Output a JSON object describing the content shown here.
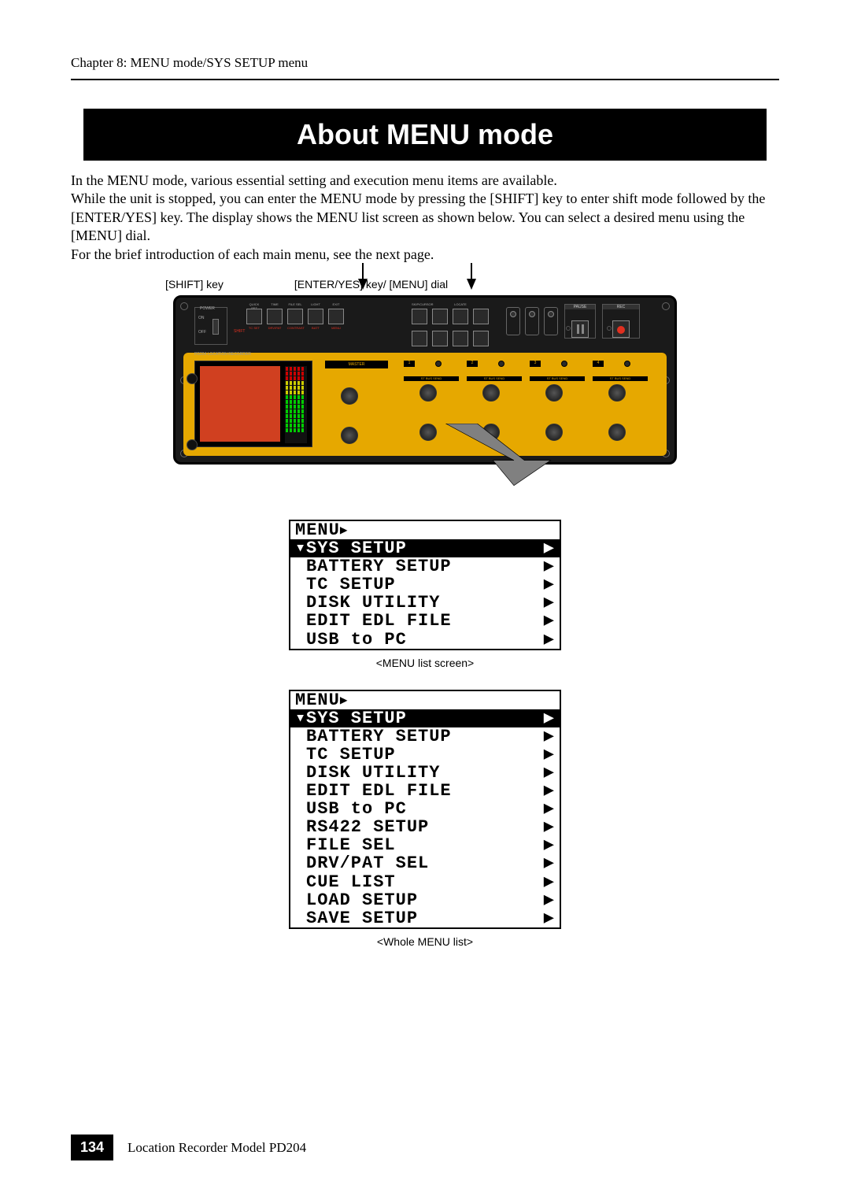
{
  "header": {
    "chapter_line": "Chapter 8: MENU mode/SYS SETUP menu"
  },
  "title": "About MENU mode",
  "paragraph": "In the MENU mode, various essential setting and execution menu items are available.\nWhile the unit is stopped, you can enter the MENU mode by pressing the [SHIFT] key to enter shift mode followed by the [ENTER/YES] key. The display shows the MENU list screen as shown below. You can select a desired menu using the [MENU] dial.\nFor the brief introduction of each main menu, see the next page.",
  "key_labels": {
    "shift": "[SHIFT] key",
    "enter": "[ENTER/YES] key/ [MENU] dial"
  },
  "device": {
    "background_color": "#1a1a1a",
    "panel_color": "#e6a800",
    "lcd_color": "#d04020",
    "power": {
      "label": "POWER",
      "on": "ON",
      "off": "OFF"
    },
    "shift_label": "SHIFT",
    "row1_top": [
      "QUICK SET",
      "TIME",
      "FILE SEL",
      "LIGHT",
      "EXIT"
    ],
    "row1_bot": [
      "TC SET",
      "DRV/PAT",
      "CONTRAST",
      "BATT",
      "MENU"
    ],
    "row1_bot_color": [
      "#e03020",
      "#e03020",
      "#e03020",
      "#e03020",
      "#e03020"
    ],
    "row2_top": [
      "SKIP/CURSOR",
      "",
      "LOCATE",
      ""
    ],
    "row2_labels_a": [
      "|◀◀",
      "▶▶|",
      "◀◀",
      "▶▶"
    ],
    "row2_labels_b": [
      "REW",
      "FF",
      "MARK",
      "CLEAR"
    ],
    "row3_top": [
      "HOME",
      "STOP",
      "ENTER",
      "MENU"
    ],
    "toggles": [
      "PRE REC",
      "HPF",
      "SLATE"
    ],
    "pause_label": "PAUSE",
    "rec_label": "REC",
    "location_label": "PD204 LOCATION RECORDER",
    "brand": "FOSTEX",
    "monitor_label": "MONITOR",
    "phones_label": "PHONES",
    "min_label": "MIN",
    "max_label": "MAX",
    "stbus_label": "ST BUS",
    "master_label": "MASTER",
    "channel_numbers": [
      "1",
      "2",
      "3",
      "4"
    ],
    "channel_section": "ST BUS SEND",
    "gain_label": "GAIN",
    "delay_label": "DELAY"
  },
  "menu1": {
    "title": "MENU",
    "caption": "<MENU list screen>",
    "selected": "SYS SETUP",
    "items": [
      "BATTERY SETUP",
      "TC SETUP",
      "DISK UTILITY",
      "EDIT EDL FILE",
      "USB to PC"
    ]
  },
  "menu2": {
    "title": "MENU",
    "caption": "<Whole MENU list>",
    "selected": "SYS SETUP",
    "items": [
      "BATTERY SETUP",
      "TC SETUP",
      "DISK UTILITY",
      "EDIT EDL FILE",
      "USB to PC",
      "RS422 SETUP",
      "FILE SEL",
      "DRV/PAT SEL",
      "CUE LIST",
      "LOAD SETUP",
      "SAVE SETUP"
    ]
  },
  "footer": {
    "page": "134",
    "text": "Location Recorder  Model PD204"
  },
  "colors": {
    "black": "#000000",
    "white": "#ffffff",
    "panel_yellow": "#e6a800",
    "lcd_orange": "#d04020",
    "red": "#e03020",
    "grey": "#888888"
  }
}
